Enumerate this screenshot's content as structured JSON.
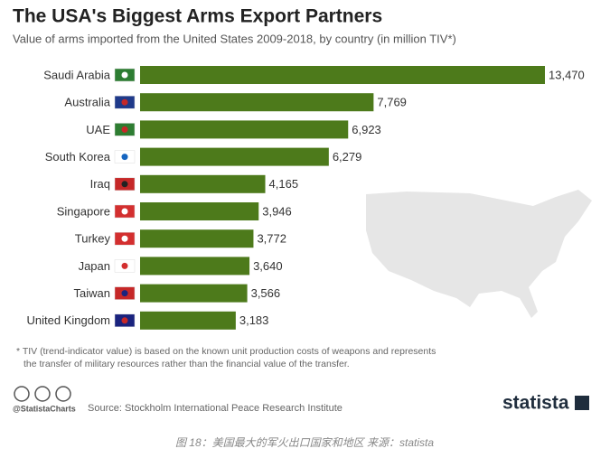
{
  "chart_data": {
    "type": "bar",
    "orientation": "horizontal",
    "title": "The USA's Biggest Arms Export Partners",
    "subtitle": "Value of arms imported from the United States 2009-2018, by country (in million TIV*)",
    "categories": [
      "Saudi Arabia",
      "Australia",
      "UAE",
      "South Korea",
      "Iraq",
      "Singapore",
      "Turkey",
      "Japan",
      "Taiwan",
      "United Kingdom"
    ],
    "values": [
      13470,
      7769,
      6923,
      6279,
      4165,
      3946,
      3772,
      3640,
      3566,
      3183
    ],
    "value_labels": [
      "13,470",
      "7,769",
      "6,923",
      "6,279",
      "4,165",
      "3,946",
      "3,772",
      "3,640",
      "3,566",
      "3,183"
    ],
    "color": "#4d7a1b",
    "footnote": [
      "* TIV (trend-indicator value) is based on the known unit production costs of weapons and represents",
      "the transfer of military resources rather than the financial value of the transfer."
    ],
    "credit": "@StatistaCharts",
    "source": "Source: Stockholm International Peace Research Institute",
    "brand": "statista"
  },
  "caption": "图 18：美国最大的军火出口国家和地区  来源：statista"
}
